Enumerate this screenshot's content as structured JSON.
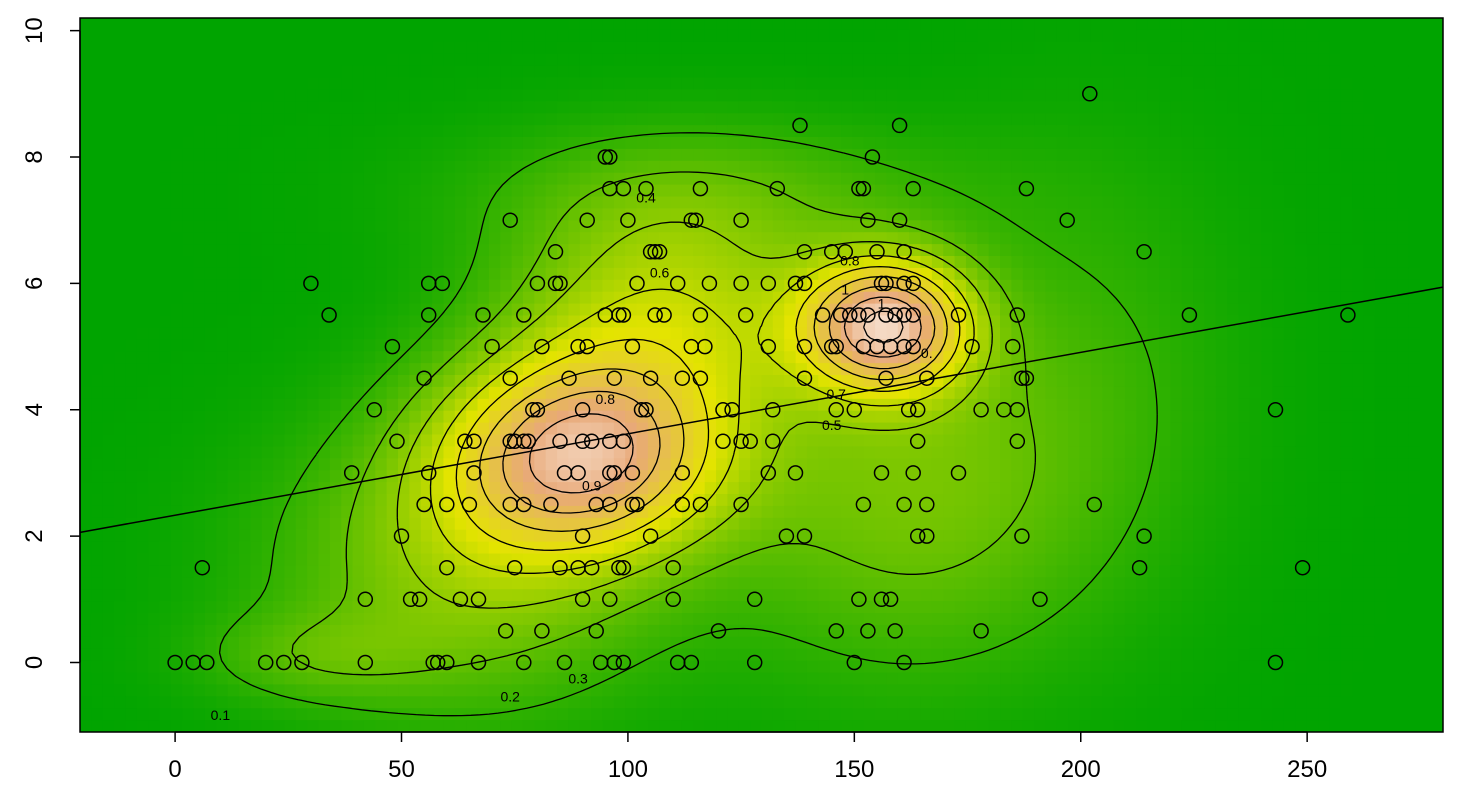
{
  "chart_data": {
    "type": "scatter",
    "title": "",
    "xlabel": "",
    "ylabel": "",
    "xlim": [
      -21,
      280
    ],
    "ylim": [
      -1.1,
      10.2
    ],
    "x_ticks": [
      "0",
      "50",
      "100",
      "150",
      "200",
      "250"
    ],
    "y_ticks": [
      "0",
      "2",
      "4",
      "6",
      "8",
      "10"
    ],
    "background": "density-heatmap",
    "colors": {
      "low_density": "#00a400",
      "mid_density": "#e4e400",
      "high_density": "#e8a978",
      "peak_density": "#ffffff",
      "points": "#000000",
      "lines": "#000000"
    },
    "regression_line": {
      "x": [
        -21,
        280
      ],
      "y": [
        2.06,
        5.94
      ]
    },
    "density_peaks": [
      {
        "x": 90,
        "y": 3.3,
        "sx": 22,
        "sy": 1.1,
        "w": 0.72
      },
      {
        "x": 157,
        "y": 5.35,
        "sx": 13,
        "sy": 0.75,
        "w": 0.78
      },
      {
        "x": 108,
        "y": 5.6,
        "sx": 25,
        "sy": 1.3,
        "w": 0.35
      },
      {
        "x": 65,
        "y": 1.5,
        "sx": 30,
        "sy": 1.6,
        "w": 0.28
      },
      {
        "x": 160,
        "y": 2.6,
        "sx": 28,
        "sy": 2.0,
        "w": 0.22
      },
      {
        "x": 30,
        "y": 0.1,
        "sx": 18,
        "sy": 0.5,
        "w": 0.12
      },
      {
        "x": 200,
        "y": 4.5,
        "sx": 25,
        "sy": 2.5,
        "w": 0.1
      },
      {
        "x": 120,
        "y": 7.5,
        "sx": 40,
        "sy": 0.8,
        "w": 0.12
      }
    ],
    "contour_labels": [
      {
        "text": "0.1",
        "x": 10,
        "y": -0.83
      },
      {
        "text": "0.2",
        "x": 74,
        "y": -0.54
      },
      {
        "text": "0.3",
        "x": 89,
        "y": -0.25
      },
      {
        "text": "0.4",
        "x": 104,
        "y": 7.36
      },
      {
        "text": "0.5",
        "x": 145,
        "y": 3.76
      },
      {
        "text": "0.6",
        "x": 107,
        "y": 6.17
      },
      {
        "text": "0.7",
        "x": 146,
        "y": 4.25
      },
      {
        "text": "0.8",
        "x": 95,
        "y": 4.17
      },
      {
        "text": "0.9",
        "x": 92,
        "y": 2.8
      },
      {
        "text": "0.8",
        "x": 149,
        "y": 6.36
      },
      {
        "text": "1",
        "x": 148,
        "y": 5.9
      },
      {
        "text": "1",
        "x": 156,
        "y": 5.68
      },
      {
        "text": "0.",
        "x": 166,
        "y": 4.9
      }
    ],
    "points": [
      [
        0,
        0
      ],
      [
        4,
        0
      ],
      [
        7,
        0
      ],
      [
        20,
        0
      ],
      [
        24,
        0
      ],
      [
        28,
        0
      ],
      [
        42,
        0
      ],
      [
        57,
        0
      ],
      [
        58,
        0
      ],
      [
        60,
        0
      ],
      [
        67,
        0
      ],
      [
        77,
        0
      ],
      [
        86,
        0
      ],
      [
        94,
        0
      ],
      [
        97,
        0
      ],
      [
        99,
        0
      ],
      [
        111,
        0
      ],
      [
        114,
        0
      ],
      [
        128,
        0
      ],
      [
        150,
        0
      ],
      [
        161,
        0
      ],
      [
        243,
        0
      ],
      [
        6,
        1.5
      ],
      [
        73,
        0.5
      ],
      [
        81,
        0.5
      ],
      [
        93,
        0.5
      ],
      [
        120,
        0.5
      ],
      [
        146,
        0.5
      ],
      [
        153,
        0.5
      ],
      [
        159,
        0.5
      ],
      [
        178,
        0.5
      ],
      [
        42,
        1
      ],
      [
        52,
        1
      ],
      [
        54,
        1
      ],
      [
        63,
        1
      ],
      [
        67,
        1
      ],
      [
        90,
        1
      ],
      [
        96,
        1
      ],
      [
        110,
        1
      ],
      [
        128,
        1
      ],
      [
        151,
        1
      ],
      [
        156,
        1
      ],
      [
        158,
        1
      ],
      [
        191,
        1
      ],
      [
        243,
        4
      ],
      [
        60,
        1.5
      ],
      [
        75,
        1.5
      ],
      [
        85,
        1.5
      ],
      [
        89,
        1.5
      ],
      [
        92,
        1.5
      ],
      [
        98,
        1.5
      ],
      [
        99,
        1.5
      ],
      [
        110,
        1.5
      ],
      [
        213,
        1.5
      ],
      [
        249,
        1.5
      ],
      [
        50,
        2
      ],
      [
        90,
        2
      ],
      [
        105,
        2
      ],
      [
        135,
        2
      ],
      [
        139,
        2
      ],
      [
        164,
        2
      ],
      [
        166,
        2
      ],
      [
        187,
        2
      ],
      [
        214,
        2
      ],
      [
        55,
        2.5
      ],
      [
        60,
        2.5
      ],
      [
        65,
        2.5
      ],
      [
        74,
        2.5
      ],
      [
        77,
        2.5
      ],
      [
        83,
        2.5
      ],
      [
        93,
        2.5
      ],
      [
        96,
        2.5
      ],
      [
        101,
        2.5
      ],
      [
        102,
        2.5
      ],
      [
        112,
        2.5
      ],
      [
        116,
        2.5
      ],
      [
        125,
        2.5
      ],
      [
        152,
        2.5
      ],
      [
        161,
        2.5
      ],
      [
        166,
        2.5
      ],
      [
        203,
        2.5
      ],
      [
        56,
        3
      ],
      [
        66,
        3
      ],
      [
        86,
        3
      ],
      [
        89,
        3
      ],
      [
        96,
        3
      ],
      [
        97,
        3
      ],
      [
        101,
        3
      ],
      [
        112,
        3
      ],
      [
        131,
        3
      ],
      [
        137,
        3
      ],
      [
        156,
        3
      ],
      [
        163,
        3
      ],
      [
        173,
        3
      ],
      [
        39,
        3
      ],
      [
        49,
        3.5
      ],
      [
        64,
        3.5
      ],
      [
        66,
        3.5
      ],
      [
        74,
        3.5
      ],
      [
        75,
        3.5
      ],
      [
        77,
        3.5
      ],
      [
        78,
        3.5
      ],
      [
        85,
        3.5
      ],
      [
        90,
        3.5
      ],
      [
        92,
        3.5
      ],
      [
        96,
        3.5
      ],
      [
        99,
        3.5
      ],
      [
        121,
        3.5
      ],
      [
        125,
        3.5
      ],
      [
        127,
        3.5
      ],
      [
        132,
        3.5
      ],
      [
        164,
        3.5
      ],
      [
        186,
        3.5
      ],
      [
        44,
        4
      ],
      [
        79,
        4
      ],
      [
        80,
        4
      ],
      [
        90,
        4
      ],
      [
        103,
        4
      ],
      [
        104,
        4
      ],
      [
        121,
        4
      ],
      [
        123,
        4
      ],
      [
        132,
        4
      ],
      [
        146,
        4
      ],
      [
        150,
        4
      ],
      [
        162,
        4
      ],
      [
        164,
        4
      ],
      [
        178,
        4
      ],
      [
        183,
        4
      ],
      [
        186,
        4
      ],
      [
        55,
        4.5
      ],
      [
        74,
        4.5
      ],
      [
        87,
        4.5
      ],
      [
        97,
        4.5
      ],
      [
        105,
        4.5
      ],
      [
        112,
        4.5
      ],
      [
        116,
        4.5
      ],
      [
        139,
        4.5
      ],
      [
        157,
        4.5
      ],
      [
        166,
        4.5
      ],
      [
        187,
        4.5
      ],
      [
        188,
        4.5
      ],
      [
        48,
        5
      ],
      [
        70,
        5
      ],
      [
        81,
        5
      ],
      [
        89,
        5
      ],
      [
        91,
        5
      ],
      [
        101,
        5
      ],
      [
        114,
        5
      ],
      [
        117,
        5
      ],
      [
        131,
        5
      ],
      [
        139,
        5
      ],
      [
        145,
        5
      ],
      [
        146,
        5
      ],
      [
        152,
        5
      ],
      [
        155,
        5
      ],
      [
        158,
        5
      ],
      [
        161,
        5
      ],
      [
        163,
        5
      ],
      [
        176,
        5
      ],
      [
        185,
        5
      ],
      [
        56,
        5.5
      ],
      [
        68,
        5.5
      ],
      [
        77,
        5.5
      ],
      [
        95,
        5.5
      ],
      [
        98,
        5.5
      ],
      [
        99,
        5.5
      ],
      [
        106,
        5.5
      ],
      [
        108,
        5.5
      ],
      [
        116,
        5.5
      ],
      [
        126,
        5.5
      ],
      [
        143,
        5.5
      ],
      [
        147,
        5.5
      ],
      [
        149,
        5.5
      ],
      [
        151,
        5.5
      ],
      [
        153,
        5.5
      ],
      [
        157,
        5.5
      ],
      [
        159,
        5.5
      ],
      [
        161,
        5.5
      ],
      [
        163,
        5.5
      ],
      [
        173,
        5.5
      ],
      [
        186,
        5.5
      ],
      [
        34,
        5.5
      ],
      [
        224,
        5.5
      ],
      [
        259,
        5.5
      ],
      [
        30,
        6
      ],
      [
        56,
        6
      ],
      [
        59,
        6
      ],
      [
        80,
        6
      ],
      [
        84,
        6
      ],
      [
        85,
        6
      ],
      [
        102,
        6
      ],
      [
        111,
        6
      ],
      [
        118,
        6
      ],
      [
        125,
        6
      ],
      [
        131,
        6
      ],
      [
        137,
        6
      ],
      [
        139,
        6
      ],
      [
        156,
        6
      ],
      [
        157,
        6
      ],
      [
        161,
        6
      ],
      [
        163,
        6
      ],
      [
        84,
        6.5
      ],
      [
        105,
        6.5
      ],
      [
        106,
        6.5
      ],
      [
        107,
        6.5
      ],
      [
        139,
        6.5
      ],
      [
        145,
        6.5
      ],
      [
        148,
        6.5
      ],
      [
        155,
        6.5
      ],
      [
        161,
        6.5
      ],
      [
        214,
        6.5
      ],
      [
        74,
        7
      ],
      [
        91,
        7
      ],
      [
        100,
        7
      ],
      [
        114,
        7
      ],
      [
        115,
        7
      ],
      [
        125,
        7
      ],
      [
        153,
        7
      ],
      [
        160,
        7
      ],
      [
        197,
        7
      ],
      [
        96,
        7.5
      ],
      [
        99,
        7.5
      ],
      [
        104,
        7.5
      ],
      [
        116,
        7.5
      ],
      [
        133,
        7.5
      ],
      [
        151,
        7.5
      ],
      [
        152,
        7.5
      ],
      [
        163,
        7.5
      ],
      [
        188,
        7.5
      ],
      [
        95,
        8
      ],
      [
        96,
        8
      ],
      [
        154,
        8
      ],
      [
        138,
        8.5
      ],
      [
        160,
        8.5
      ],
      [
        202,
        9
      ]
    ]
  }
}
